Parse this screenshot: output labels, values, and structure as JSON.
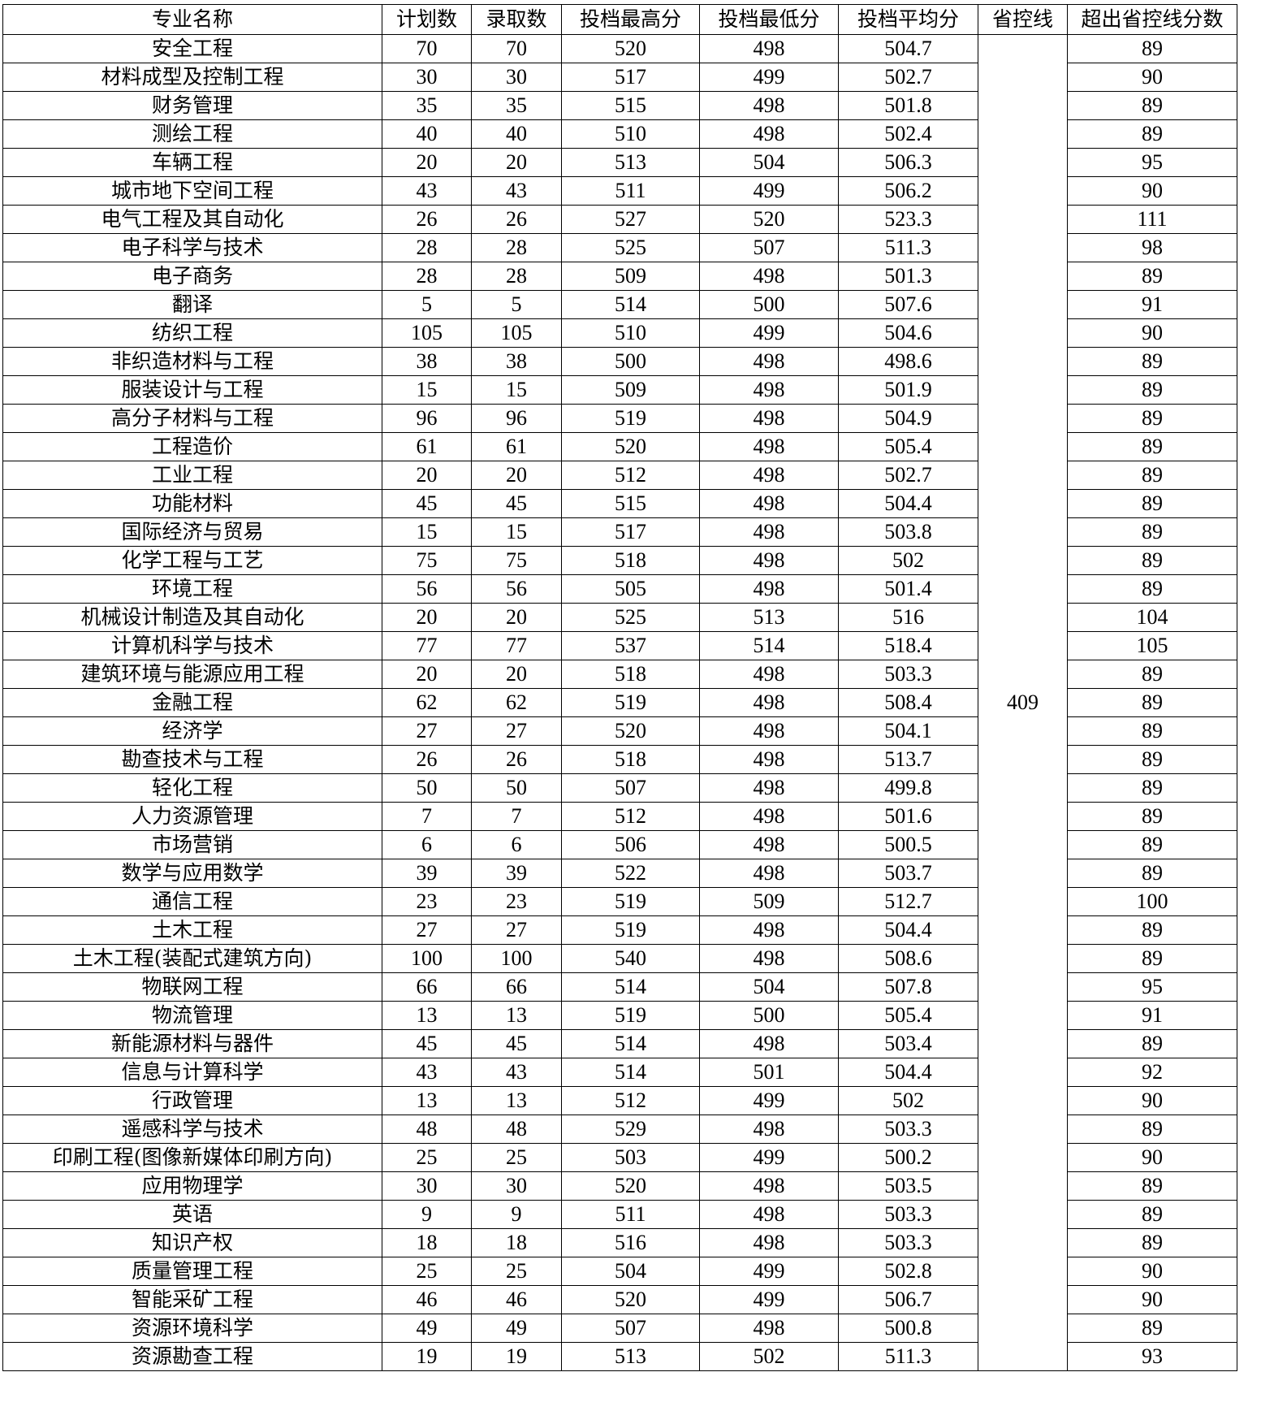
{
  "table": {
    "headers": [
      "专业名称",
      "计划数",
      "录取数",
      "投档最高分",
      "投档最低分",
      "投档平均分",
      "省控线",
      "超出省控线分数"
    ],
    "provincial_line": "409",
    "rows": [
      [
        "安全工程",
        "70",
        "70",
        "520",
        "498",
        "504.7",
        "89"
      ],
      [
        "材料成型及控制工程",
        "30",
        "30",
        "517",
        "499",
        "502.7",
        "90"
      ],
      [
        "财务管理",
        "35",
        "35",
        "515",
        "498",
        "501.8",
        "89"
      ],
      [
        "测绘工程",
        "40",
        "40",
        "510",
        "498",
        "502.4",
        "89"
      ],
      [
        "车辆工程",
        "20",
        "20",
        "513",
        "504",
        "506.3",
        "95"
      ],
      [
        "城市地下空间工程",
        "43",
        "43",
        "511",
        "499",
        "506.2",
        "90"
      ],
      [
        "电气工程及其自动化",
        "26",
        "26",
        "527",
        "520",
        "523.3",
        "111"
      ],
      [
        "电子科学与技术",
        "28",
        "28",
        "525",
        "507",
        "511.3",
        "98"
      ],
      [
        "电子商务",
        "28",
        "28",
        "509",
        "498",
        "501.3",
        "89"
      ],
      [
        "翻译",
        "5",
        "5",
        "514",
        "500",
        "507.6",
        "91"
      ],
      [
        "纺织工程",
        "105",
        "105",
        "510",
        "499",
        "504.6",
        "90"
      ],
      [
        "非织造材料与工程",
        "38",
        "38",
        "500",
        "498",
        "498.6",
        "89"
      ],
      [
        "服装设计与工程",
        "15",
        "15",
        "509",
        "498",
        "501.9",
        "89"
      ],
      [
        "高分子材料与工程",
        "96",
        "96",
        "519",
        "498",
        "504.9",
        "89"
      ],
      [
        "工程造价",
        "61",
        "61",
        "520",
        "498",
        "505.4",
        "89"
      ],
      [
        "工业工程",
        "20",
        "20",
        "512",
        "498",
        "502.7",
        "89"
      ],
      [
        "功能材料",
        "45",
        "45",
        "515",
        "498",
        "504.4",
        "89"
      ],
      [
        "国际经济与贸易",
        "15",
        "15",
        "517",
        "498",
        "503.8",
        "89"
      ],
      [
        "化学工程与工艺",
        "75",
        "75",
        "518",
        "498",
        "502",
        "89"
      ],
      [
        "环境工程",
        "56",
        "56",
        "505",
        "498",
        "501.4",
        "89"
      ],
      [
        "机械设计制造及其自动化",
        "20",
        "20",
        "525",
        "513",
        "516",
        "104"
      ],
      [
        "计算机科学与技术",
        "77",
        "77",
        "537",
        "514",
        "518.4",
        "105"
      ],
      [
        "建筑环境与能源应用工程",
        "20",
        "20",
        "518",
        "498",
        "503.3",
        "89"
      ],
      [
        "金融工程",
        "62",
        "62",
        "519",
        "498",
        "508.4",
        "89"
      ],
      [
        "经济学",
        "27",
        "27",
        "520",
        "498",
        "504.1",
        "89"
      ],
      [
        "勘查技术与工程",
        "26",
        "26",
        "518",
        "498",
        "513.7",
        "89"
      ],
      [
        "轻化工程",
        "50",
        "50",
        "507",
        "498",
        "499.8",
        "89"
      ],
      [
        "人力资源管理",
        "7",
        "7",
        "512",
        "498",
        "501.6",
        "89"
      ],
      [
        "市场营销",
        "6",
        "6",
        "506",
        "498",
        "500.5",
        "89"
      ],
      [
        "数学与应用数学",
        "39",
        "39",
        "522",
        "498",
        "503.7",
        "89"
      ],
      [
        "通信工程",
        "23",
        "23",
        "519",
        "509",
        "512.7",
        "100"
      ],
      [
        "土木工程",
        "27",
        "27",
        "519",
        "498",
        "504.4",
        "89"
      ],
      [
        "土木工程(装配式建筑方向)",
        "100",
        "100",
        "540",
        "498",
        "508.6",
        "89"
      ],
      [
        "物联网工程",
        "66",
        "66",
        "514",
        "504",
        "507.8",
        "95"
      ],
      [
        "物流管理",
        "13",
        "13",
        "519",
        "500",
        "505.4",
        "91"
      ],
      [
        "新能源材料与器件",
        "45",
        "45",
        "514",
        "498",
        "503.4",
        "89"
      ],
      [
        "信息与计算科学",
        "43",
        "43",
        "514",
        "501",
        "504.4",
        "92"
      ],
      [
        "行政管理",
        "13",
        "13",
        "512",
        "499",
        "502",
        "90"
      ],
      [
        "遥感科学与技术",
        "48",
        "48",
        "529",
        "498",
        "503.3",
        "89"
      ],
      [
        "印刷工程(图像新媒体印刷方向)",
        "25",
        "25",
        "503",
        "499",
        "500.2",
        "90"
      ],
      [
        "应用物理学",
        "30",
        "30",
        "520",
        "498",
        "503.5",
        "89"
      ],
      [
        "英语",
        "9",
        "9",
        "511",
        "498",
        "503.3",
        "89"
      ],
      [
        "知识产权",
        "18",
        "18",
        "516",
        "498",
        "503.3",
        "89"
      ],
      [
        "质量管理工程",
        "25",
        "25",
        "504",
        "499",
        "502.8",
        "90"
      ],
      [
        "智能采矿工程",
        "46",
        "46",
        "520",
        "499",
        "506.7",
        "90"
      ],
      [
        "资源环境科学",
        "49",
        "49",
        "507",
        "498",
        "500.8",
        "89"
      ],
      [
        "资源勘查工程",
        "19",
        "19",
        "513",
        "502",
        "511.3",
        "93"
      ]
    ]
  }
}
